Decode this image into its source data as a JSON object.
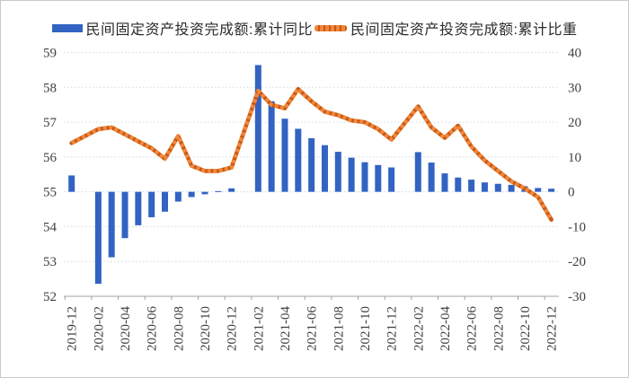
{
  "legend": [
    {
      "label": "民间固定资产投资完成额:累计同比",
      "color": "#3263c3",
      "marker": "bar-swatch"
    },
    {
      "label": "民间固定资产投资完成额:累计比重",
      "color": "#ed7d31",
      "marker": "dashed-line-swatch"
    }
  ],
  "chart_data": {
    "type": "bar+line dual-axis",
    "title": "",
    "grid": "horizontal dotted",
    "x_tick_labels": [
      "2019-12",
      "2020-02",
      "2020-04",
      "2020-06",
      "2020-08",
      "2020-10",
      "2020-12",
      "2021-02",
      "2021-04",
      "2021-06",
      "2021-08",
      "2021-10",
      "2021-12",
      "2022-02",
      "2022-04",
      "2022-06",
      "2022-08",
      "2022-10",
      "2022-12"
    ],
    "left_axis": {
      "min": 52,
      "max": 59,
      "step": 1,
      "ticks": [
        52,
        53,
        54,
        55,
        56,
        57,
        58,
        59
      ]
    },
    "right_axis": {
      "min": -30,
      "max": 40,
      "step": 10,
      "ticks": [
        -30,
        -20,
        -10,
        0,
        10,
        20,
        30,
        40
      ]
    },
    "colors": {
      "bar": "#3263c3",
      "line_base": "#c55a11",
      "line_dash": "#f2863c",
      "grid": "#ccd9e8",
      "axis": "#a0a0a0",
      "tick_text": "#3f3f3f"
    },
    "series": [
      {
        "name": "民间固定资产投资完成额:累计同比",
        "type": "bar",
        "axis": "right",
        "color": "#3263c3",
        "points": [
          {
            "month": "2019-12",
            "value": 4.7
          },
          {
            "month": "2020-02",
            "value": -26.4
          },
          {
            "month": "2020-03",
            "value": -18.8
          },
          {
            "month": "2020-04",
            "value": -13.3
          },
          {
            "month": "2020-05",
            "value": -9.6
          },
          {
            "month": "2020-06",
            "value": -7.3
          },
          {
            "month": "2020-07",
            "value": -5.7
          },
          {
            "month": "2020-08",
            "value": -2.8
          },
          {
            "month": "2020-09",
            "value": -1.5
          },
          {
            "month": "2020-10",
            "value": -0.7
          },
          {
            "month": "2020-11",
            "value": 0.2
          },
          {
            "month": "2020-12",
            "value": 1.0
          },
          {
            "month": "2021-02",
            "value": 36.4
          },
          {
            "month": "2021-03",
            "value": 26.0
          },
          {
            "month": "2021-04",
            "value": 21.0
          },
          {
            "month": "2021-05",
            "value": 18.1
          },
          {
            "month": "2021-06",
            "value": 15.4
          },
          {
            "month": "2021-07",
            "value": 13.4
          },
          {
            "month": "2021-08",
            "value": 11.5
          },
          {
            "month": "2021-09",
            "value": 9.8
          },
          {
            "month": "2021-10",
            "value": 8.5
          },
          {
            "month": "2021-11",
            "value": 7.7
          },
          {
            "month": "2021-12",
            "value": 7.0
          },
          {
            "month": "2022-02",
            "value": 11.4
          },
          {
            "month": "2022-03",
            "value": 8.4
          },
          {
            "month": "2022-04",
            "value": 5.3
          },
          {
            "month": "2022-05",
            "value": 4.1
          },
          {
            "month": "2022-06",
            "value": 3.5
          },
          {
            "month": "2022-07",
            "value": 2.7
          },
          {
            "month": "2022-08",
            "value": 2.3
          },
          {
            "month": "2022-09",
            "value": 2.0
          },
          {
            "month": "2022-10",
            "value": 1.6
          },
          {
            "month": "2022-11",
            "value": 1.1
          },
          {
            "month": "2022-12",
            "value": 0.9
          }
        ]
      },
      {
        "name": "民间固定资产投资完成额:累计比重",
        "type": "line",
        "axis": "left",
        "color": "#ed7d31",
        "points": [
          {
            "month": "2019-12",
            "value": 56.4
          },
          {
            "month": "2020-02",
            "value": 56.8
          },
          {
            "month": "2020-03",
            "value": 56.85
          },
          {
            "month": "2020-04",
            "value": 56.65
          },
          {
            "month": "2020-05",
            "value": 56.45
          },
          {
            "month": "2020-06",
            "value": 56.25
          },
          {
            "month": "2020-07",
            "value": 55.95
          },
          {
            "month": "2020-08",
            "value": 56.6
          },
          {
            "month": "2020-09",
            "value": 55.75
          },
          {
            "month": "2020-10",
            "value": 55.6
          },
          {
            "month": "2020-11",
            "value": 55.6
          },
          {
            "month": "2020-12",
            "value": 55.7
          },
          {
            "month": "2021-02",
            "value": 57.9
          },
          {
            "month": "2021-03",
            "value": 57.5
          },
          {
            "month": "2021-04",
            "value": 57.4
          },
          {
            "month": "2021-05",
            "value": 57.95
          },
          {
            "month": "2021-06",
            "value": 57.6
          },
          {
            "month": "2021-07",
            "value": 57.3
          },
          {
            "month": "2021-08",
            "value": 57.2
          },
          {
            "month": "2021-09",
            "value": 57.05
          },
          {
            "month": "2021-10",
            "value": 57.0
          },
          {
            "month": "2021-11",
            "value": 56.8
          },
          {
            "month": "2021-12",
            "value": 56.5
          },
          {
            "month": "2022-02",
            "value": 57.45
          },
          {
            "month": "2022-03",
            "value": 56.85
          },
          {
            "month": "2022-04",
            "value": 56.55
          },
          {
            "month": "2022-05",
            "value": 56.9
          },
          {
            "month": "2022-06",
            "value": 56.3
          },
          {
            "month": "2022-07",
            "value": 55.9
          },
          {
            "month": "2022-08",
            "value": 55.6
          },
          {
            "month": "2022-09",
            "value": 55.3
          },
          {
            "month": "2022-10",
            "value": 55.1
          },
          {
            "month": "2022-11",
            "value": 54.85
          },
          {
            "month": "2022-12",
            "value": 54.2
          }
        ]
      }
    ]
  }
}
